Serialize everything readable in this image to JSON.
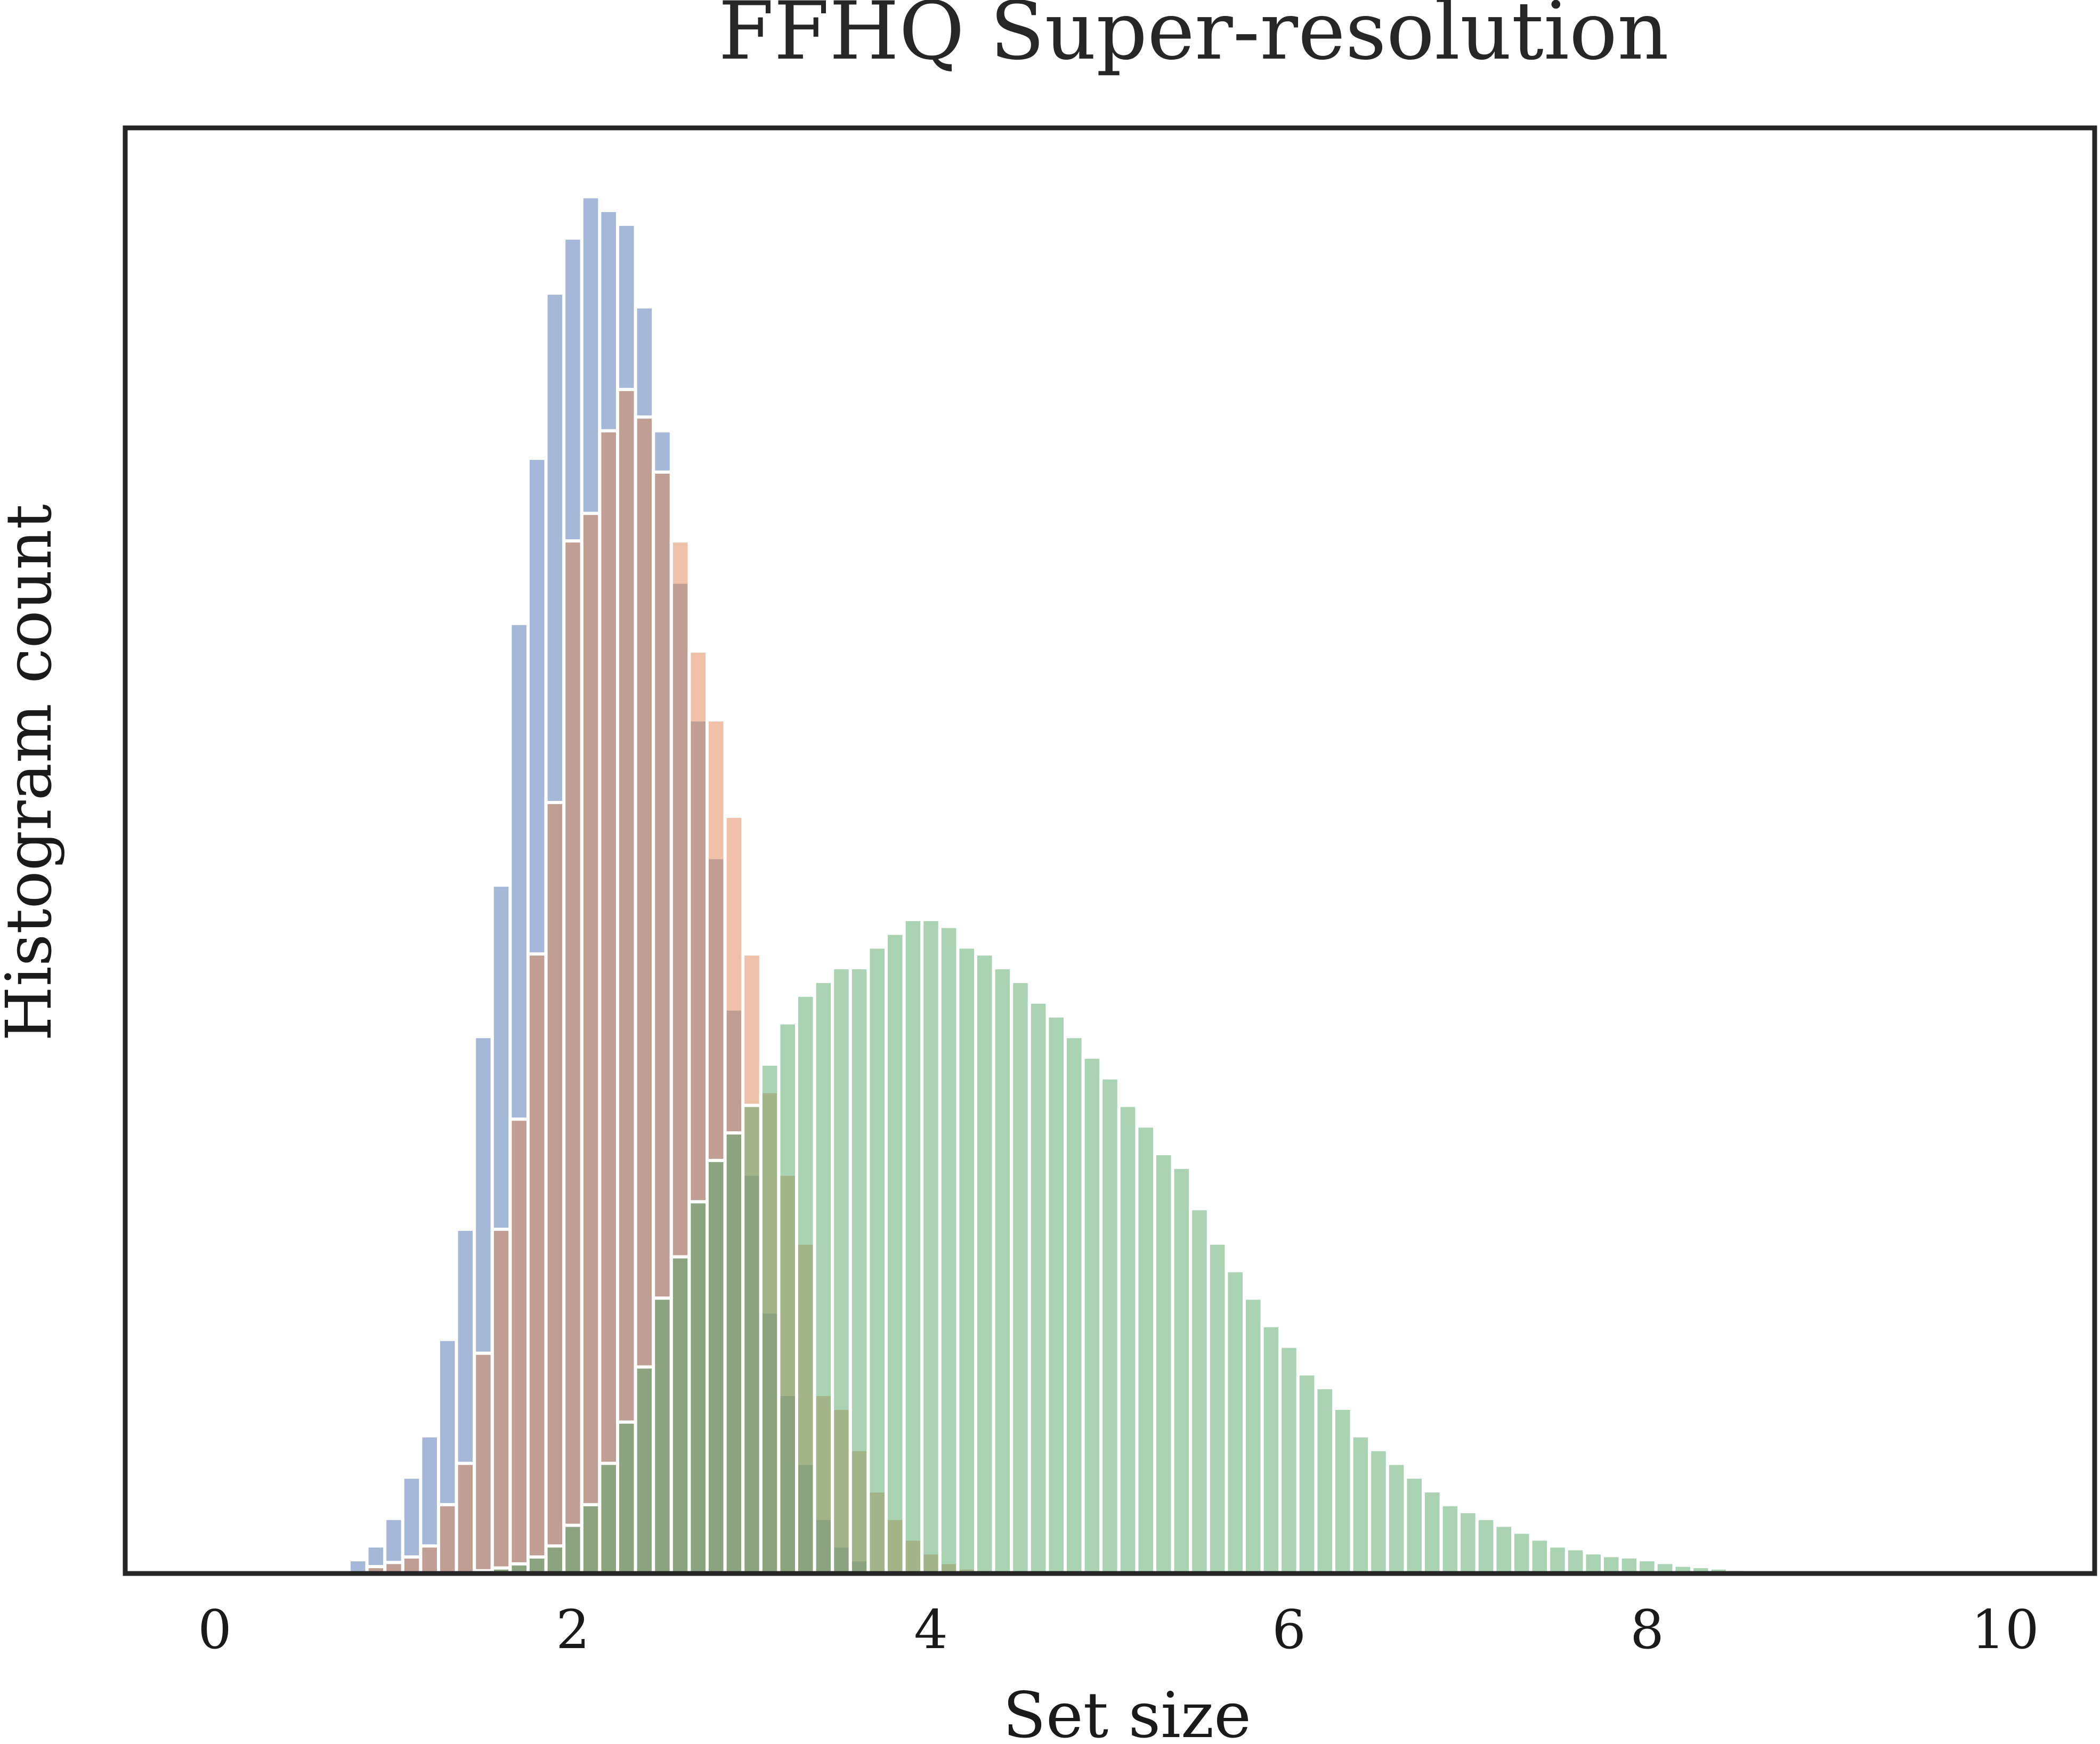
{
  "chart_data": {
    "type": "bar",
    "title": "FFHQ Super-resolution",
    "xlabel": "Set size",
    "ylabel": "Histogram count",
    "xlim": [
      -0.5,
      10.5
    ],
    "ylim": [
      0,
      1.05
    ],
    "xticks": [
      0,
      2,
      4,
      6,
      8,
      10
    ],
    "yticks_shown": false,
    "grid": false,
    "legend": "none",
    "bin_width": 0.1,
    "bin_start": 0.75,
    "alpha": 0.5,
    "series": [
      {
        "color": "#4c72b0",
        "values": [
          0.01,
          0.02,
          0.04,
          0.07,
          0.1,
          0.17,
          0.25,
          0.39,
          0.5,
          0.69,
          0.81,
          0.93,
          0.97,
          1.0,
          0.99,
          0.98,
          0.92,
          0.83,
          0.72,
          0.62,
          0.52,
          0.41,
          0.29,
          0.19,
          0.13,
          0.08,
          0.04,
          0.02,
          0.01
        ]
      },
      {
        "color": "#dd8452",
        "values": [
          0.005,
          0.008,
          0.012,
          0.02,
          0.05,
          0.08,
          0.16,
          0.25,
          0.33,
          0.45,
          0.56,
          0.75,
          0.77,
          0.83,
          0.86,
          0.84,
          0.8,
          0.75,
          0.67,
          0.62,
          0.55,
          0.45,
          0.35,
          0.29,
          0.24,
          0.13,
          0.12,
          0.09,
          0.06,
          0.04,
          0.025,
          0.015,
          0.008,
          0.004,
          0.003,
          0.002
        ]
      },
      {
        "color": "#55a868",
        "values": [
          0.002,
          0.004,
          0.007,
          0.012,
          0.02,
          0.035,
          0.05,
          0.08,
          0.11,
          0.15,
          0.2,
          0.23,
          0.27,
          0.3,
          0.32,
          0.34,
          0.37,
          0.4,
          0.42,
          0.43,
          0.44,
          0.44,
          0.455,
          0.465,
          0.475,
          0.475,
          0.47,
          0.455,
          0.45,
          0.44,
          0.43,
          0.415,
          0.405,
          0.39,
          0.375,
          0.36,
          0.34,
          0.325,
          0.305,
          0.295,
          0.265,
          0.24,
          0.22,
          0.2,
          0.18,
          0.165,
          0.145,
          0.135,
          0.12,
          0.1,
          0.09,
          0.08,
          0.07,
          0.06,
          0.05,
          0.045,
          0.04,
          0.035,
          0.03,
          0.025,
          0.02,
          0.018,
          0.015,
          0.013,
          0.012,
          0.01,
          0.008,
          0.006,
          0.005,
          0.004,
          0.003,
          0.002,
          0.0015,
          0.001,
          0.0008,
          0.0005
        ]
      }
    ],
    "series_start": [
      0.75,
      0.85,
      1.45
    ]
  }
}
